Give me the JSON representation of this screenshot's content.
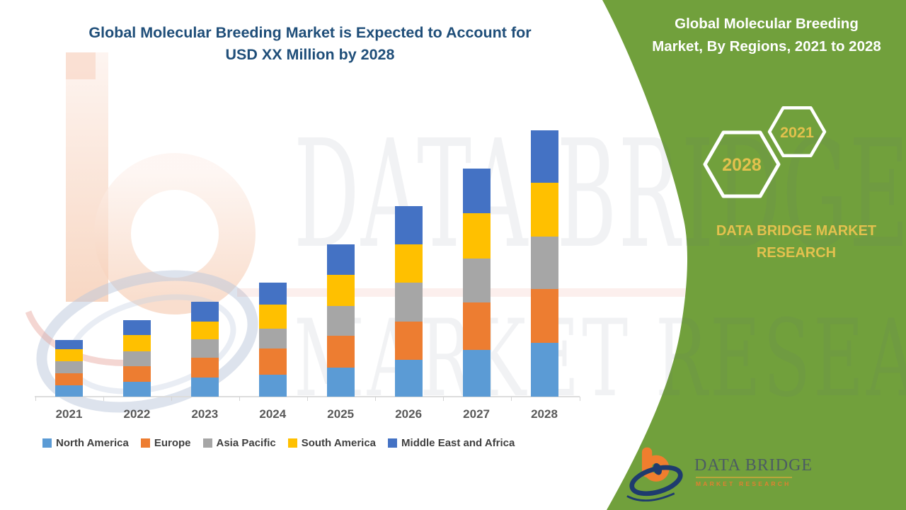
{
  "watermark": {
    "line1": "DATA BRIDGE",
    "line2": "MARKET RESEARCH"
  },
  "chart": {
    "title_line1": "Global Molecular Breeding Market is Expected to Account for",
    "title_line2": "USD XX Million by 2028",
    "title_color": "#1F4E79"
  },
  "chart_data": {
    "type": "bar",
    "stacked": true,
    "title": "Global Molecular Breeding Market is Expected to Account for USD XX Million by 2028",
    "xlabel": "",
    "ylabel": "",
    "y_axis_visible": false,
    "values_unit": "USD Million (figures undisclosed as XX; values are approximate relative magnitudes read from bar heights)",
    "grid": false,
    "legend_position": "bottom",
    "categories": [
      "2021",
      "2022",
      "2023",
      "2024",
      "2025",
      "2026",
      "2027",
      "2028"
    ],
    "series": [
      {
        "name": "North America",
        "color": "#5B9BD5",
        "values": [
          16,
          21,
          27,
          31,
          41,
          52,
          66,
          76
        ]
      },
      {
        "name": "Europe",
        "color": "#ED7D31",
        "values": [
          17,
          22,
          28,
          37,
          45,
          54,
          67,
          76
        ]
      },
      {
        "name": "Asia Pacific",
        "color": "#A6A6A6",
        "values": [
          17,
          21,
          26,
          28,
          42,
          55,
          62,
          74
        ]
      },
      {
        "name": "South America",
        "color": "#FFC000",
        "values": [
          17,
          23,
          25,
          34,
          44,
          54,
          64,
          76
        ]
      },
      {
        "name": "Middle East and Africa",
        "color": "#4472C4",
        "values": [
          13,
          21,
          28,
          31,
          43,
          54,
          63,
          74
        ]
      }
    ],
    "totals": [
      80,
      108,
      134,
      161,
      215,
      269,
      322,
      376
    ]
  },
  "panel": {
    "title_line1": "Global Molecular Breeding",
    "title_line2": "Market, By Regions, 2021 to 2028",
    "hex_big": "2028",
    "hex_small": "2021",
    "brand_line1": "DATA BRIDGE MARKET",
    "brand_line2": "RESEARCH",
    "colors": {
      "green": "#71A03C",
      "gold": "#E2C14D",
      "white": "#FFFFFF"
    }
  },
  "footer": {
    "name": "DATA BRIDGE",
    "tagline": "MARKET RESEARCH"
  }
}
